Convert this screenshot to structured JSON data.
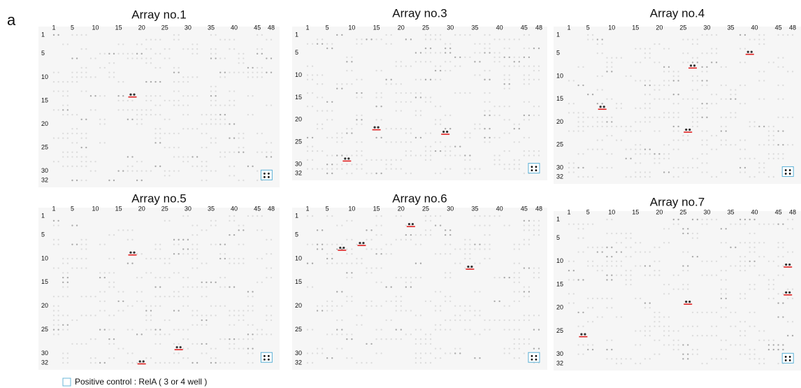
{
  "panel_label": "a",
  "column_labels": [
    1,
    5,
    10,
    15,
    20,
    25,
    30,
    35,
    40,
    45,
    48
  ],
  "row_labels": [
    1,
    5,
    10,
    15,
    20,
    25,
    30,
    32
  ],
  "panels": [
    {
      "title": "Array no.1",
      "hits": [
        [
          18,
          14
        ]
      ]
    },
    {
      "title": "Array no.3",
      "hits": [
        [
          9,
          29
        ],
        [
          15,
          22
        ],
        [
          29,
          23
        ]
      ]
    },
    {
      "title": "Array no.4",
      "hits": [
        [
          8,
          17
        ],
        [
          26,
          22
        ],
        [
          27,
          8
        ],
        [
          39,
          5
        ]
      ]
    },
    {
      "title": "Array no.5",
      "hits": [
        [
          18,
          9
        ],
        [
          20,
          32
        ],
        [
          28,
          29
        ]
      ]
    },
    {
      "title": "Array no.6",
      "hits": [
        [
          8,
          8
        ],
        [
          12,
          7
        ],
        [
          22,
          3
        ],
        [
          34,
          12
        ]
      ]
    },
    {
      "title": "Array no.7",
      "hits": [
        [
          4,
          26
        ],
        [
          26,
          19
        ],
        [
          47,
          11
        ],
        [
          47,
          17
        ]
      ]
    }
  ],
  "legend": "Positive control : RelA ( 3 or 4 well )"
}
